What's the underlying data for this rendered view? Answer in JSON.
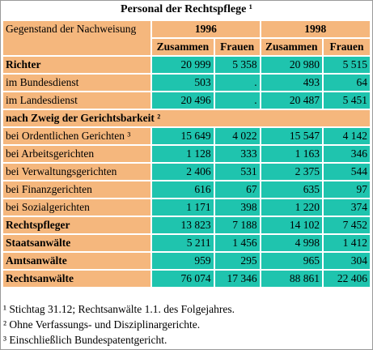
{
  "title": "Personal der Rechtspflege ¹",
  "header": {
    "subject_label": "Gegenstand der Nachweisung",
    "years": [
      "1996",
      "1998"
    ],
    "cols": [
      "Zusammen",
      "Frauen",
      "Zusammen",
      "Frauen"
    ]
  },
  "rows": [
    {
      "label": "Richter",
      "values": [
        "20 999",
        "5 358",
        "20 980",
        "5 515"
      ]
    },
    {
      "label": "im Bundesdienst",
      "values": [
        "503",
        ".",
        "493",
        "64"
      ]
    },
    {
      "label": "im Landesdienst",
      "values": [
        "20 496",
        ".",
        "20 487",
        "5 451"
      ]
    },
    {
      "section": "nach Zweig der Gerichtsbarkeit ²"
    },
    {
      "label": "bei Ordentlichen Gerichten ³",
      "values": [
        "15 649",
        "4 022",
        "15 547",
        "4 142"
      ]
    },
    {
      "label": "bei Arbeitsgerichten",
      "values": [
        "1 128",
        "333",
        "1 163",
        "346"
      ]
    },
    {
      "label": "bei Verwaltungsgerichten",
      "values": [
        "2 406",
        "531",
        "2 375",
        "544"
      ]
    },
    {
      "label": "bei Finanzgerichten",
      "values": [
        "616",
        "67",
        "635",
        "97"
      ]
    },
    {
      "label": "bei Sozialgerichten",
      "values": [
        "1 171",
        "398",
        "1 220",
        "374"
      ]
    },
    {
      "label": "Rechtspfleger",
      "values": [
        "13 823",
        "7 188",
        "14 102",
        "7 452"
      ]
    },
    {
      "label": "Staatsanwälte",
      "values": [
        "5 211",
        "1 456",
        "4 998",
        "1 412"
      ]
    },
    {
      "label": "Amtsanwälte",
      "values": [
        "959",
        "295",
        "965",
        "304"
      ]
    },
    {
      "label": "Rechtsanwälte",
      "values": [
        "76 074",
        "17 346",
        "88 861",
        "22 406"
      ]
    }
  ],
  "footnotes": [
    "¹ Stichtag 31.12; Rechtsanwälte 1.1. des Folgejahres.",
    "² Ohne Verfassungs- und Disziplinargerichte.",
    "³ Einschließlich Bundespatentgericht."
  ]
}
